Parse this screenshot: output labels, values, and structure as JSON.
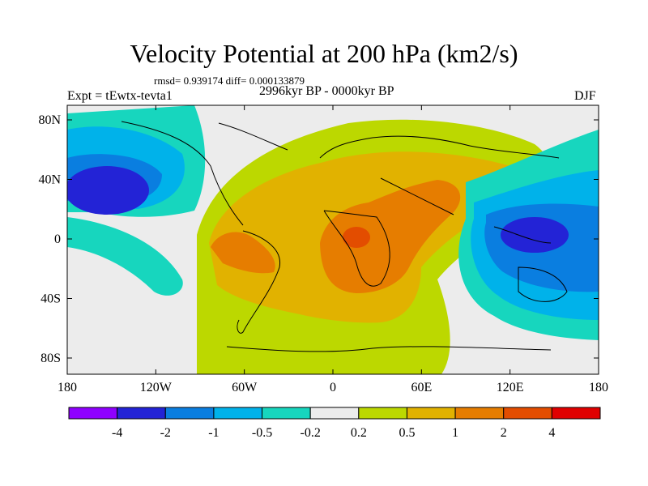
{
  "title": "Velocity Potential at 200 hPa (km2/s)",
  "stats": "rmsd= 0.939174 diff= 0.000133879",
  "experiment": "Expt = tEwtx-tevta1",
  "period": "2996kyr BP - 0000kyr BP",
  "season": "DJF",
  "map": {
    "lon_labels": [
      "180",
      "120W",
      "60W",
      "0",
      "60E",
      "120E",
      "180"
    ],
    "lat_labels": [
      "80N",
      "40N",
      "0",
      "40S",
      "80S"
    ]
  },
  "colorbar": {
    "labels": [
      "-4",
      "-2",
      "-1",
      "-0.5",
      "-0.2",
      "0.2",
      "0.5",
      "1",
      "2",
      "4"
    ],
    "colors": [
      "#8f00ff",
      "#2323d6",
      "#0a7ee0",
      "#00b2ea",
      "#17d6be",
      "#ececec",
      "#bcd800",
      "#e1b200",
      "#e67d00",
      "#e34d00",
      "#e00000"
    ]
  }
}
